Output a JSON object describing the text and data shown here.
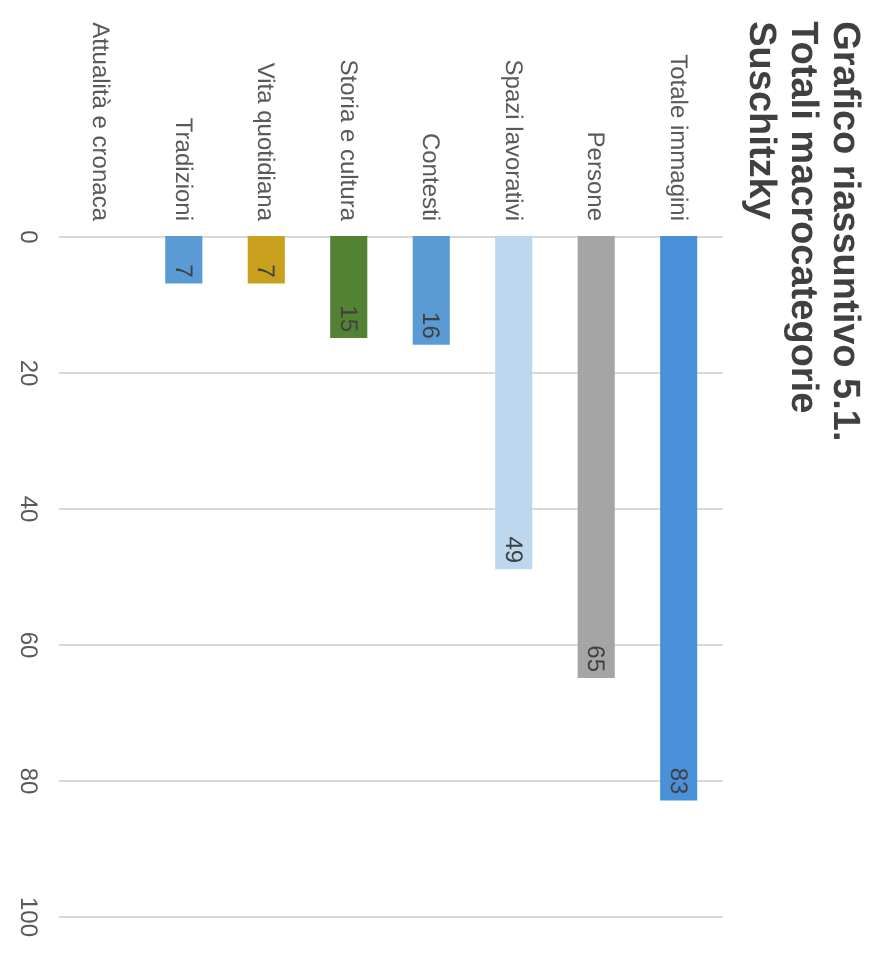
{
  "chart_data": {
    "type": "bar",
    "title": "Grafico riassuntivo 5.1. Totali macrocategorie Suschitzky",
    "categories": [
      "Attualità e cronaca",
      "Tradizioni",
      "Vita quotidiana",
      "Storia e cultura",
      "Contesti",
      "Spazi lavorativi",
      "Persone",
      "Totale immagini"
    ],
    "values": [
      null,
      7,
      7,
      15,
      16,
      49,
      65,
      83
    ],
    "colors": [
      "#5b9bd5",
      "#5b9bd5",
      "#c9a01e",
      "#548235",
      "#5b9bd5",
      "#bdd7ee",
      "#a5a5a5",
      "#4a90d9"
    ],
    "ylim": [
      100,
      0
    ],
    "yticks": [
      0,
      20,
      40,
      60,
      80,
      100
    ],
    "grid": "y",
    "data_labels": true
  }
}
